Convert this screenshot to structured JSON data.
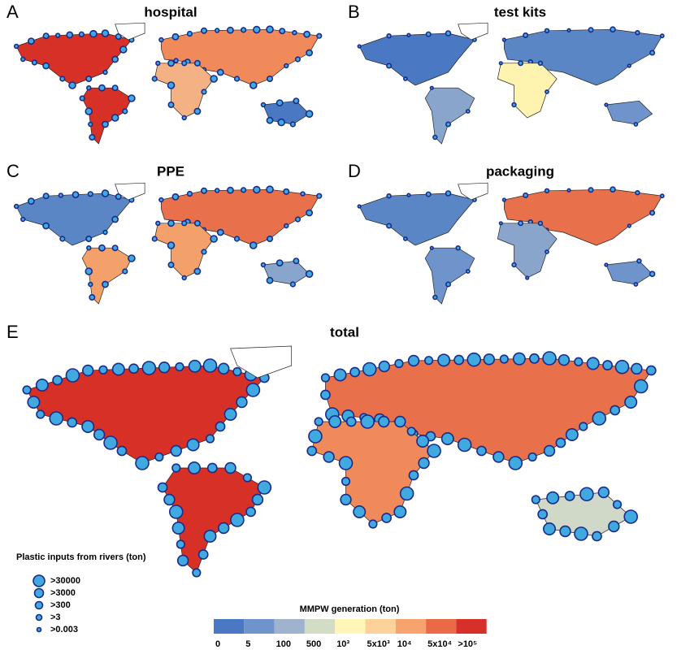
{
  "panels": [
    {
      "letter": "A",
      "title": "hospital"
    },
    {
      "letter": "B",
      "title": "test kits"
    },
    {
      "letter": "C",
      "title": "PPE"
    },
    {
      "letter": "D",
      "title": "packaging"
    },
    {
      "letter": "E",
      "title": "total"
    }
  ],
  "river_legend": {
    "title": "Plastic inputs from rivers (ton)",
    "items": [
      ">30000",
      ">3000",
      ">300",
      ">3",
      ">0.003"
    ]
  },
  "colorbar": {
    "title": "MMPW generation (ton)",
    "labels": [
      "0",
      "5",
      "100",
      "500",
      "10³",
      "5x10³",
      "10⁴",
      "5x10⁴",
      ">10⁵"
    ],
    "colors": [
      "#4a78c2",
      "#6f94cc",
      "#9fb3cf",
      "#d3dcc4",
      "#fff6b8",
      "#fdd19a",
      "#f7a36e",
      "#ea6a48",
      "#d7302a"
    ]
  }
}
